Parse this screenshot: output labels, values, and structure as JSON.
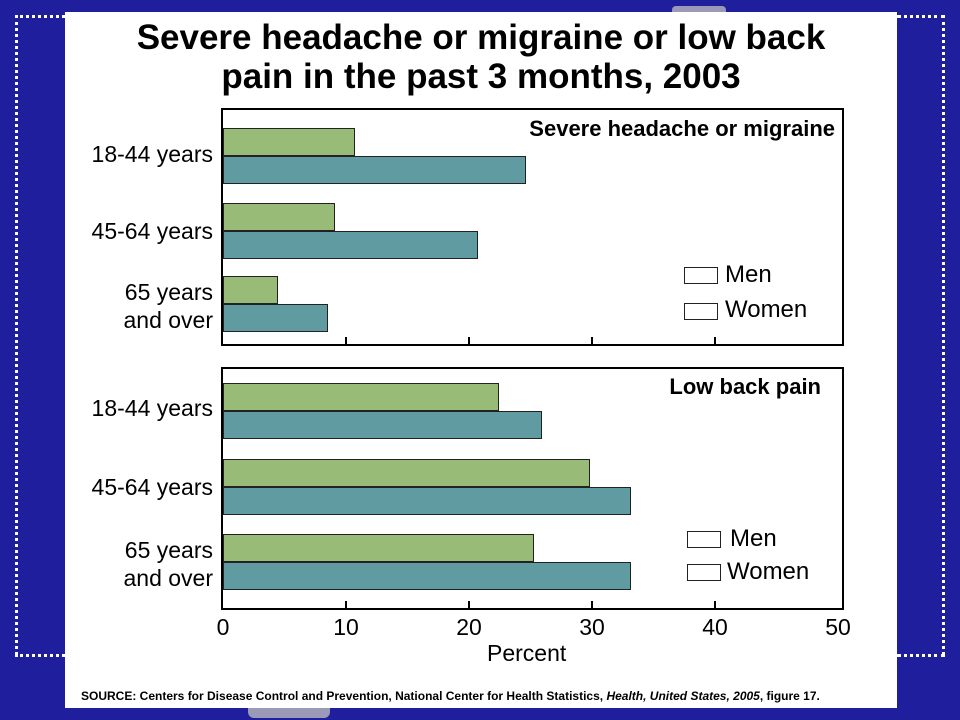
{
  "title": {
    "line1": "Severe headache or migraine or low back",
    "line2": "pain in the past 3 months, 2003"
  },
  "colors": {
    "men": "#98bb78",
    "women": "#5f9ba0",
    "background": "#1f1f9e"
  },
  "chart_data": [
    {
      "type": "bar",
      "orientation": "horizontal",
      "title": "Severe headache or migraine",
      "categories": [
        {
          "line1": "18-44 years",
          "line2": ""
        },
        {
          "line1": "45-64 years",
          "line2": ""
        },
        {
          "line1": "65 years",
          "line2": "and over"
        }
      ],
      "series": [
        {
          "name": "Men",
          "values": [
            10.7,
            9.1,
            4.5
          ]
        },
        {
          "name": "Women",
          "values": [
            24.6,
            20.7,
            8.5
          ]
        }
      ],
      "xlim": [
        0,
        50
      ],
      "legend": {
        "position": "bottom-right",
        "entries": [
          "Men",
          "Women"
        ]
      }
    },
    {
      "type": "bar",
      "orientation": "horizontal",
      "title": "Low  back  pain",
      "categories": [
        {
          "line1": "18-44 years",
          "line2": ""
        },
        {
          "line1": "45-64 years",
          "line2": ""
        },
        {
          "line1": "65 years",
          "line2": "and over"
        }
      ],
      "series": [
        {
          "name": "Men",
          "values": [
            22.4,
            29.8,
            25.3
          ]
        },
        {
          "name": "Women",
          "values": [
            25.9,
            33.2,
            33.2
          ]
        }
      ],
      "xlim": [
        0,
        50
      ],
      "xticks": [
        "0",
        "10",
        "20",
        "30",
        "40",
        "50"
      ],
      "xlabel": "Percent",
      "legend": {
        "position": "bottom-right",
        "entries": [
          "Men",
          "Women"
        ]
      }
    }
  ],
  "source": {
    "prefix": "SOURCE: Centers for Disease Control and Prevention, National Center for Health Statistics, ",
    "publication": "Health, United States, 2005",
    "suffix": ", figure 17."
  }
}
